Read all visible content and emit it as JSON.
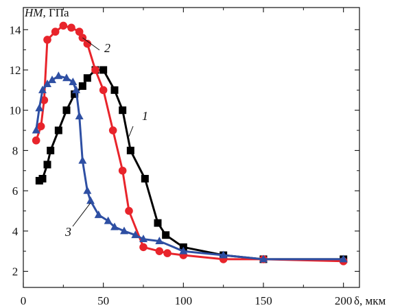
{
  "chart_data": {
    "type": "line",
    "ylabel": "HM, ГПа",
    "xlabel": "δ, мкм",
    "xlim": [
      0,
      210
    ],
    "ylim": [
      1.2,
      15.1
    ],
    "x_ticks": [
      0,
      50,
      100,
      150,
      200
    ],
    "y_ticks": [
      2,
      4,
      6,
      8,
      10,
      12,
      14
    ],
    "grid": false,
    "series": [
      {
        "name": "1",
        "color": "#000000",
        "marker": "square",
        "points": [
          [
            10,
            6.5
          ],
          [
            12,
            6.6
          ],
          [
            15,
            7.3
          ],
          [
            17,
            8.0
          ],
          [
            22,
            9.0
          ],
          [
            27,
            10.0
          ],
          [
            32,
            10.8
          ],
          [
            37,
            11.2
          ],
          [
            40,
            11.6
          ],
          [
            45,
            12.0
          ],
          [
            50,
            12.0
          ],
          [
            57,
            11.0
          ],
          [
            62,
            10.0
          ],
          [
            67,
            8.0
          ],
          [
            76,
            6.6
          ],
          [
            84,
            4.4
          ],
          [
            89,
            3.8
          ],
          [
            100,
            3.2
          ],
          [
            125,
            2.8
          ],
          [
            150,
            2.6
          ],
          [
            200,
            2.6
          ]
        ]
      },
      {
        "name": "2",
        "color": "#e8242b",
        "marker": "circle",
        "points": [
          [
            8,
            8.5
          ],
          [
            11,
            9.2
          ],
          [
            13,
            10.5
          ],
          [
            15,
            13.5
          ],
          [
            20,
            13.9
          ],
          [
            25,
            14.2
          ],
          [
            30,
            14.1
          ],
          [
            35,
            13.9
          ],
          [
            37,
            13.6
          ],
          [
            40,
            13.3
          ],
          [
            45,
            12.0
          ],
          [
            50,
            11.0
          ],
          [
            56,
            9.0
          ],
          [
            62,
            7.0
          ],
          [
            66,
            5.0
          ],
          [
            75,
            3.2
          ],
          [
            85,
            3.0
          ],
          [
            90,
            2.9
          ],
          [
            100,
            2.8
          ],
          [
            125,
            2.6
          ],
          [
            150,
            2.6
          ],
          [
            200,
            2.5
          ]
        ]
      },
      {
        "name": "3",
        "color": "#2e4fa3",
        "marker": "triangle",
        "points": [
          [
            8,
            9.0
          ],
          [
            10,
            10.1
          ],
          [
            12,
            11.0
          ],
          [
            15,
            11.3
          ],
          [
            18,
            11.5
          ],
          [
            22,
            11.7
          ],
          [
            27,
            11.6
          ],
          [
            31,
            11.4
          ],
          [
            33,
            11.0
          ],
          [
            35,
            9.7
          ],
          [
            37,
            7.5
          ],
          [
            40,
            6.0
          ],
          [
            42,
            5.5
          ],
          [
            47,
            4.8
          ],
          [
            53,
            4.5
          ],
          [
            57,
            4.2
          ],
          [
            63,
            4.0
          ],
          [
            70,
            3.8
          ],
          [
            75,
            3.6
          ],
          [
            85,
            3.5
          ],
          [
            100,
            3.0
          ],
          [
            125,
            2.8
          ],
          [
            150,
            2.6
          ],
          [
            200,
            2.6
          ]
        ]
      }
    ]
  }
}
